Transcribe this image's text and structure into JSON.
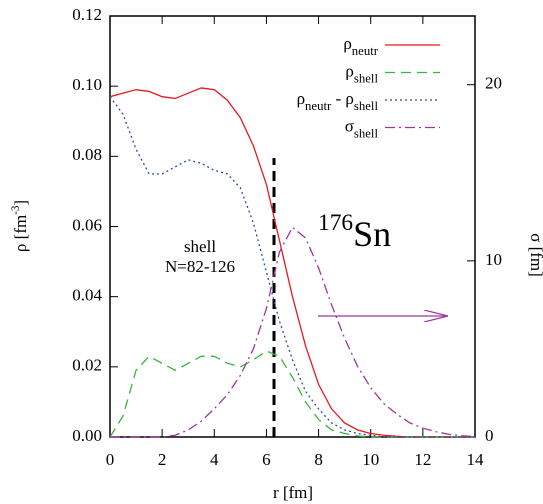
{
  "chart_data": {
    "type": "line",
    "x_label": "r [fm]",
    "y_label": [
      {
        "text": "ρ [fm"
      },
      {
        "sup": "-3"
      },
      {
        "text": "]"
      }
    ],
    "y2_label": "σ [fm]",
    "annotations": [
      "shell",
      "N=82-126"
    ],
    "nucleus": [
      {
        "sup": "176"
      },
      {
        "text": "Sn"
      }
    ],
    "x": [
      0,
      0.5,
      1,
      1.5,
      2,
      2.5,
      3,
      3.5,
      4,
      4.5,
      5,
      5.5,
      6,
      6.5,
      7,
      7.5,
      8,
      8.5,
      9,
      9.5,
      10,
      10.5,
      11,
      11.5,
      12,
      12.5,
      13,
      13.5,
      14
    ],
    "xlim": [
      0,
      14
    ],
    "xticks": [
      0,
      2,
      4,
      6,
      8,
      10,
      12,
      14
    ],
    "ylim": [
      0,
      0.12
    ],
    "yticks": [
      {
        "value": 0,
        "label": "0.00"
      },
      0.02,
      0.04,
      0.06,
      0.08,
      {
        "value": 0.1,
        "label": "0.10"
      },
      0.12
    ],
    "y2lim": [
      0,
      23.9
    ],
    "y2ticks": [
      0,
      10,
      20
    ],
    "legend": "upper right",
    "series": [
      {
        "name": [
          {
            "text": "ρ"
          },
          {
            "sub": "neutr"
          }
        ],
        "color": "#e8191e",
        "dash": "solid",
        "values": [
          0.097,
          0.098,
          0.099,
          0.0985,
          0.097,
          0.0965,
          0.098,
          0.0995,
          0.099,
          0.096,
          0.091,
          0.083,
          0.072,
          0.056,
          0.04,
          0.026,
          0.015,
          0.008,
          0.004,
          0.002,
          0.001,
          0.0005,
          0.0002,
          0,
          0,
          0,
          0,
          0,
          0
        ]
      },
      {
        "name": [
          {
            "text": "ρ"
          },
          {
            "sub": "shell"
          }
        ],
        "color": "#3cb53c",
        "dash": "dashed",
        "values": [
          0,
          0.006,
          0.019,
          0.023,
          0.021,
          0.019,
          0.021,
          0.023,
          0.023,
          0.021,
          0.02,
          0.022,
          0.0245,
          0.023,
          0.017,
          0.01,
          0.005,
          0.002,
          0.001,
          0.0003,
          0,
          0,
          0,
          0,
          0,
          0,
          0,
          0,
          0
        ]
      },
      {
        "name": [
          {
            "text": "ρ"
          },
          {
            "sub": "neutr"
          },
          {
            "text": " - ρ"
          },
          {
            "sub": "shell"
          }
        ],
        "color": "#2a4fa8",
        "dash": "dotted",
        "values": [
          0.097,
          0.092,
          0.082,
          0.075,
          0.075,
          0.077,
          0.079,
          0.078,
          0.076,
          0.075,
          0.071,
          0.061,
          0.047,
          0.033,
          0.022,
          0.013,
          0.008,
          0.004,
          0.002,
          0.001,
          0.0005,
          0,
          0,
          0,
          0,
          0,
          0,
          0,
          0
        ]
      },
      {
        "name": [
          {
            "text": "σ"
          },
          {
            "sub": "shell"
          }
        ],
        "color": "#a0359c",
        "dash": "dashdot",
        "axis": "y2",
        "values": [
          0,
          0,
          0,
          0,
          0,
          0.1,
          0.4,
          0.9,
          1.6,
          2.4,
          3.5,
          5,
          7.3,
          10.5,
          11.9,
          11.3,
          9.6,
          7.5,
          5.6,
          4,
          2.8,
          1.9,
          1.3,
          0.8,
          0.5,
          0.3,
          0.15,
          0.07,
          0.03
        ]
      }
    ]
  }
}
